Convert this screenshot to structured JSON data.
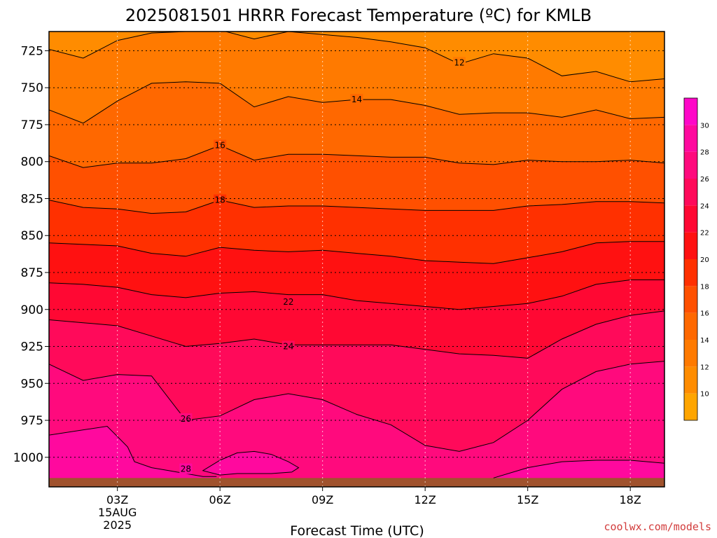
{
  "chart_data": {
    "type": "heatmap",
    "title": "2025081501 HRRR Forecast Temperature (ºC) for KMLB",
    "xlabel": "Forecast Time (UTC)",
    "ylabel": "",
    "credit": "coolwx.com/models",
    "x_ticks": [
      {
        "hour": 3,
        "label": "03Z",
        "sublabel": [
          "15AUG",
          "2025"
        ]
      },
      {
        "hour": 6,
        "label": "06Z"
      },
      {
        "hour": 9,
        "label": "09Z"
      },
      {
        "hour": 12,
        "label": "12Z"
      },
      {
        "hour": 15,
        "label": "15Z"
      },
      {
        "hour": 18,
        "label": "18Z"
      }
    ],
    "xlim": [
      1,
      19
    ],
    "y_ticks": [
      725,
      750,
      775,
      800,
      825,
      850,
      875,
      900,
      925,
      950,
      975,
      1000
    ],
    "ylim": [
      712,
      1020
    ],
    "ground_top_hpa": 1014,
    "colorbar": {
      "ticks": [
        10,
        12,
        14,
        16,
        18,
        20,
        22,
        24,
        26,
        28,
        30
      ],
      "levels": [
        8,
        10,
        12,
        14,
        16,
        18,
        20,
        22,
        24,
        26,
        28,
        30,
        32
      ],
      "colors": [
        "#ffa500",
        "#ff8c00",
        "#ff7a00",
        "#ff6800",
        "#ff5000",
        "#ff3000",
        "#ff1111",
        "#ff0833",
        "#ff0a5a",
        "#ff0a7d",
        "#ff099e",
        "#ff07c8"
      ]
    },
    "contours": [
      {
        "value": 12,
        "label_at": [
          13,
          733
        ],
        "x": [
          1,
          2,
          3,
          4,
          5,
          6,
          7,
          8,
          9,
          10,
          11,
          12,
          13,
          14,
          15,
          16,
          17,
          18,
          19
        ],
        "y": [
          724,
          730,
          718,
          713,
          712,
          711,
          717,
          712,
          714,
          716,
          719,
          723,
          734,
          727,
          730,
          742,
          739,
          746,
          744
        ]
      },
      {
        "value": 14,
        "label_at": [
          10,
          758
        ],
        "x": [
          1,
          2,
          3,
          4,
          5,
          6,
          7,
          8,
          9,
          10,
          11,
          12,
          13,
          14,
          15,
          16,
          17,
          18,
          19
        ],
        "y": [
          765,
          774,
          759,
          747,
          746,
          747,
          763,
          756,
          760,
          758,
          758,
          762,
          768,
          767,
          767,
          770,
          765,
          771,
          770
        ]
      },
      {
        "value": 16,
        "label_at": [
          6,
          789
        ],
        "x": [
          1,
          2,
          3,
          4,
          5,
          6,
          7,
          8,
          9,
          10,
          11,
          12,
          13,
          14,
          15,
          16,
          17,
          18,
          19
        ],
        "y": [
          796,
          804,
          801,
          801,
          798,
          789,
          799,
          795,
          795,
          796,
          797,
          797,
          801,
          802,
          799,
          800,
          800,
          799,
          801
        ]
      },
      {
        "value": 18,
        "label_at": [
          6,
          826
        ],
        "x": [
          1,
          2,
          3,
          4,
          5,
          6,
          7,
          8,
          9,
          10,
          11,
          12,
          13,
          14,
          15,
          16,
          17,
          18,
          19
        ],
        "y": [
          826,
          831,
          832,
          835,
          834,
          826,
          831,
          830,
          830,
          831,
          832,
          833,
          833,
          833,
          830,
          829,
          827,
          827,
          828
        ]
      },
      {
        "value": 20,
        "label_at": null,
        "x": [
          1,
          2,
          3,
          4,
          5,
          6,
          7,
          8,
          9,
          10,
          11,
          12,
          13,
          14,
          15,
          16,
          17,
          18,
          19
        ],
        "y": [
          855,
          856,
          857,
          862,
          864,
          858,
          860,
          861,
          860,
          862,
          864,
          867,
          868,
          869,
          865,
          861,
          855,
          854,
          854
        ]
      },
      {
        "value": 22,
        "label_at": [
          8,
          895
        ],
        "x": [
          1,
          2,
          3,
          4,
          5,
          6,
          7,
          8,
          9,
          10,
          11,
          12,
          13,
          14,
          15,
          16,
          17,
          18,
          19
        ],
        "y": [
          882,
          883,
          885,
          890,
          892,
          889,
          888,
          890,
          890,
          894,
          896,
          898,
          900,
          898,
          896,
          891,
          883,
          880,
          880
        ]
      },
      {
        "value": 24,
        "label_at": [
          8,
          925
        ],
        "x": [
          1,
          2,
          3,
          4,
          5,
          6,
          7,
          8,
          9,
          10,
          11,
          12,
          13,
          14,
          15,
          16,
          17,
          18,
          19
        ],
        "y": [
          907,
          909,
          911,
          918,
          925,
          923,
          920,
          924,
          924,
          924,
          924,
          927,
          930,
          931,
          933,
          920,
          910,
          904,
          901
        ]
      },
      {
        "value": 26,
        "label_at": [
          5,
          974
        ],
        "x": [
          1,
          2,
          3,
          4,
          5,
          6,
          7,
          8,
          9,
          10,
          11,
          12,
          13,
          14,
          15,
          16,
          17,
          18,
          19
        ],
        "y": [
          937,
          948,
          944,
          945,
          975,
          972,
          961,
          957,
          961,
          971,
          978,
          992,
          996,
          990,
          975,
          954,
          942,
          937,
          935
        ]
      },
      {
        "value": 28,
        "label_at": [
          5,
          1008
        ],
        "x": [
          1,
          2.7,
          3,
          3.3,
          3.5,
          4,
          4.5,
          5,
          5.5,
          5.9
        ],
        "y": [
          985,
          979,
          986,
          993,
          1003,
          1007,
          1009,
          1011,
          1013,
          1013
        ]
      },
      {
        "value": 28,
        "label_at": null,
        "x": [
          5.5,
          6,
          6.5,
          7,
          7.5,
          8,
          8.3,
          8.1,
          7.5,
          7,
          6.5,
          6,
          5.5
        ],
        "y": [
          1009,
          1002,
          997,
          996,
          998,
          1003,
          1007,
          1010,
          1011,
          1011,
          1011,
          1012,
          1009
        ]
      },
      {
        "value": 28,
        "label_at": null,
        "x": [
          14,
          15,
          16,
          17,
          18,
          19
        ],
        "y": [
          1014,
          1007,
          1003,
          1002,
          1002,
          1004
        ]
      }
    ],
    "grid": true
  }
}
